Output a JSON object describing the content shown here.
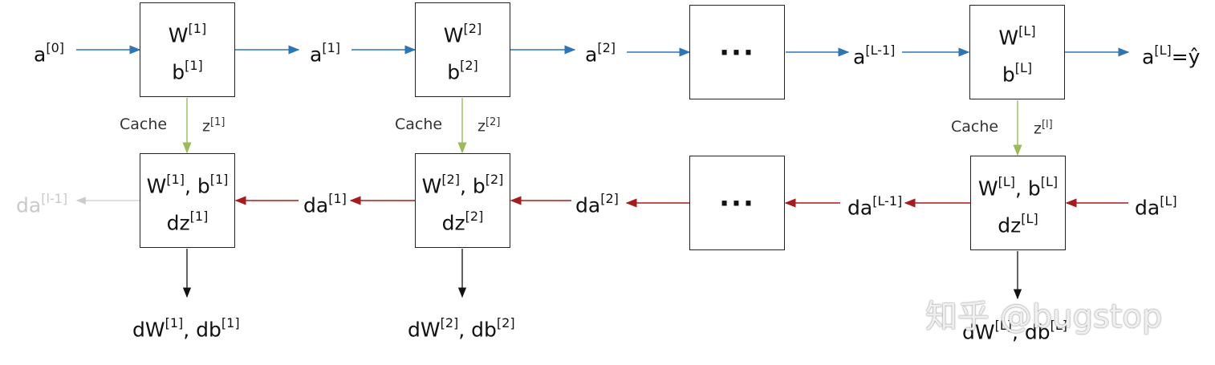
{
  "colors": {
    "forward": "#2e75b6",
    "backward": "#a61c1c",
    "cache": "#9bbb59",
    "faded": "#cccccc",
    "border": "#222222"
  },
  "forward": {
    "inputs": [
      {
        "base": "a",
        "sup": "[0]"
      },
      {
        "base": "a",
        "sup": "[1]"
      },
      {
        "base": "a",
        "sup": "[2]"
      },
      {
        "base": "a",
        "sup": "[L-1]"
      },
      {
        "base": "a",
        "sup": "[L]",
        "suffix": "=ŷ"
      }
    ],
    "layers": [
      {
        "w": "W",
        "w_sup": "[1]",
        "b": "b",
        "b_sup": "[1]"
      },
      {
        "w": "W",
        "w_sup": "[2]",
        "b": "b",
        "b_sup": "[2]"
      },
      {
        "dots": "···"
      },
      {
        "w": "W",
        "w_sup": "[L]",
        "b": "b",
        "b_sup": "[L]"
      }
    ]
  },
  "cache": [
    {
      "label": "Cache",
      "z": "z",
      "z_sup": "[1]"
    },
    {
      "label": "Cache",
      "z": "z",
      "z_sup": "[2]"
    },
    {
      "label": "Cache",
      "z": "z",
      "z_sup": "[l]"
    }
  ],
  "backward": {
    "inputs": [
      {
        "base": "da",
        "sup": "[l-1]"
      },
      {
        "base": "da",
        "sup": "[1]"
      },
      {
        "base": "da",
        "sup": "[2]"
      },
      {
        "base": "da",
        "sup": "[L-1]"
      },
      {
        "base": "da",
        "sup": "[L]"
      }
    ],
    "layers": [
      {
        "line1": "W",
        "s1": "[1]",
        "mid": ", b",
        "s2": "[1]",
        "line2": "dz",
        "s3": "[1]"
      },
      {
        "line1": "W",
        "s1": "[2]",
        "mid": ", b",
        "s2": "[2]",
        "line2": "dz",
        "s3": "[2]"
      },
      {
        "dots": "···"
      },
      {
        "line1": "W",
        "s1": "[L]",
        "mid": ", b",
        "s2": "[L]",
        "line2": "dz",
        "s3": "[L]"
      }
    ],
    "outputs": [
      {
        "dw": "dW",
        "s1": "[1]",
        "db": ", db",
        "s2": "[1]"
      },
      {
        "dw": "dW",
        "s1": "[2]",
        "db": ", db",
        "s2": "[2]"
      },
      {
        "dw": "dW",
        "s1": "[L]",
        "db": ", db",
        "s2": "[L]"
      }
    ]
  },
  "watermark": "知乎 @bugstop"
}
